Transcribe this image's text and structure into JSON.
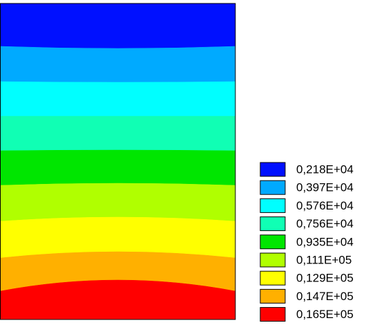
{
  "chart_data": {
    "type": "contour",
    "levels": [
      {
        "value": 2180,
        "label": "0,218E+04"
      },
      {
        "value": 3970,
        "label": "0,397E+04"
      },
      {
        "value": 5760,
        "label": "0,576E+04"
      },
      {
        "value": 7560,
        "label": "0,756E+04"
      },
      {
        "value": 9350,
        "label": "0,935E+04"
      },
      {
        "value": 11100,
        "label": "0,111E+05"
      },
      {
        "value": 12900,
        "label": "0,129E+05"
      },
      {
        "value": 14700,
        "label": "0,147E+05"
      },
      {
        "value": 16500,
        "label": "0,165E+05"
      }
    ],
    "colors": [
      "#0010ff",
      "#00aaff",
      "#00ffff",
      "#10ffb4",
      "#00e600",
      "#b0ff00",
      "#ffff00",
      "#ffb000",
      "#ff0000"
    ]
  }
}
